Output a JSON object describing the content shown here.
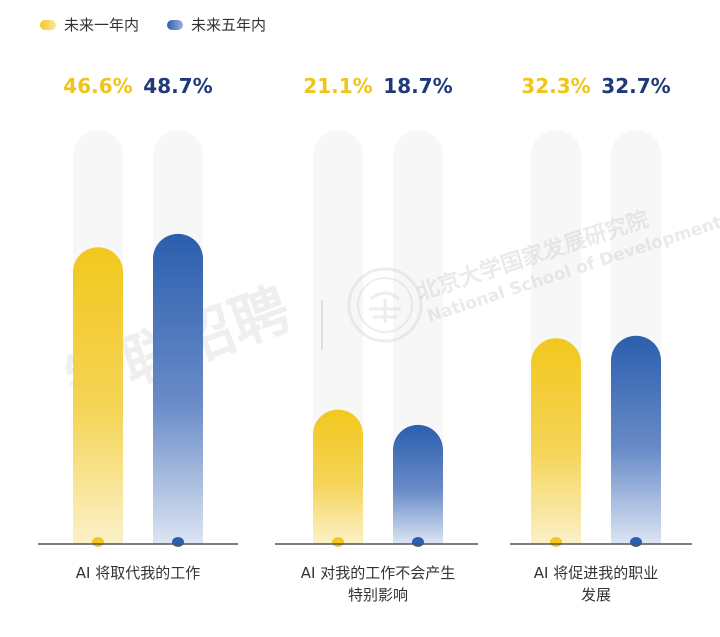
{
  "chart_data": {
    "type": "bar",
    "categories": [
      "AI 将取代我的工作",
      "AI 对我的工作不会产生特别影响",
      "AI 将促进我的职业发展"
    ],
    "category_label_lines": [
      [
        "AI 将取代我的工作"
      ],
      [
        "AI 对我的工作不会产生",
        "特别影响"
      ],
      [
        "AI 将促进我的职业",
        "发展"
      ]
    ],
    "series": [
      {
        "name": "未来一年内",
        "values": [
          46.6,
          21.1,
          32.3
        ],
        "labels": [
          "46.6%",
          "21.1%",
          "32.3%"
        ],
        "color": "#F2C81E",
        "label_color": "#F0C419"
      },
      {
        "name": "未来五年内",
        "values": [
          48.7,
          18.7,
          32.7
        ],
        "labels": [
          "48.7%",
          "18.7%",
          "32.7%"
        ],
        "color": "#2B5EAE",
        "label_color": "#1E3A78"
      }
    ],
    "ylim": [
      0,
      65
    ],
    "grid": false,
    "legend_position": "top-left"
  },
  "watermarks": {
    "left": "智联招聘",
    "right_line1": "北京大学国家发展研究院",
    "right_line2": "National School of Development"
  }
}
